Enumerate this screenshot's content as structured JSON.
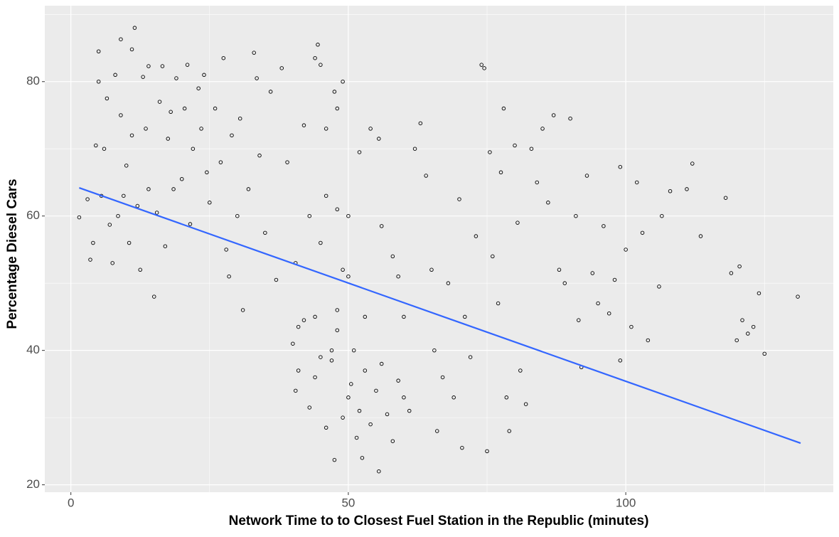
{
  "chart_data": {
    "type": "scatter",
    "x_label": "Network Time to to Closest Fuel Station in the Republic (minutes)",
    "y_label": "Percentage Diesel Cars",
    "xlim": [
      -4.7,
      137.4
    ],
    "ylim": [
      18.9,
      91.3
    ],
    "xticks": [
      0,
      50,
      100
    ],
    "yticks": [
      20,
      40,
      60,
      80
    ],
    "x_minor_grid": [
      25,
      75,
      125
    ],
    "y_minor_grid": [
      30,
      50,
      70,
      90
    ],
    "grid": true,
    "point_color": "#000000",
    "panel_color": "#ebebeb",
    "x": [
      1.5,
      3,
      3.5,
      4,
      4.5,
      5,
      5,
      5.5,
      6,
      6.5,
      7,
      7.5,
      8,
      8.5,
      9,
      9,
      9.5,
      10,
      10.5,
      11,
      11,
      11.5,
      12,
      12.5,
      13,
      13.5,
      14,
      14,
      15,
      15.5,
      16,
      16.5,
      17,
      17.5,
      18,
      18.5,
      19,
      20,
      20.5,
      21,
      21.5,
      22,
      23,
      23.5,
      24,
      24.5,
      25,
      26,
      27,
      27.5,
      28,
      28.5,
      29,
      30,
      30.5,
      31,
      32,
      33,
      33.5,
      34,
      35,
      36,
      37,
      38,
      39,
      40,
      40.5,
      41,
      42,
      43,
      44,
      44,
      45,
      46,
      47,
      48,
      49,
      50,
      40.5,
      41,
      42,
      43,
      44,
      45,
      46,
      47,
      48,
      49,
      50,
      50.5,
      51,
      51.5,
      52,
      53,
      54,
      55,
      55.5,
      56,
      57,
      58,
      59,
      60,
      47.5,
      52.5,
      53,
      49,
      48,
      44.5,
      45,
      47.5,
      48,
      52,
      54,
      55.5,
      46,
      50,
      56,
      58,
      59,
      60,
      61,
      62,
      63,
      64,
      65,
      65.5,
      66,
      67,
      68,
      69,
      70,
      70.5,
      71,
      72,
      73,
      74,
      74.5,
      75,
      75.5,
      76,
      77,
      77.5,
      78,
      78.5,
      79,
      80,
      80.5,
      81,
      82,
      83,
      84,
      85,
      86,
      87,
      88,
      89,
      90,
      91,
      91.5,
      92,
      93,
      94,
      95,
      96,
      97,
      98,
      99,
      99,
      100,
      101,
      102,
      103,
      104,
      106,
      106.5,
      108,
      111,
      112,
      113.5,
      118,
      119,
      120,
      120.5,
      121,
      122,
      123,
      124,
      125,
      131
    ],
    "values": [
      59.8,
      62.5,
      53.5,
      56,
      70.5,
      84.5,
      80,
      63,
      70,
      77.5,
      58.7,
      53,
      81,
      60,
      86.3,
      75,
      63,
      67.5,
      56,
      84.8,
      72,
      88,
      61.5,
      52,
      80.7,
      73,
      82.3,
      64,
      48,
      60.5,
      77,
      82.3,
      55.5,
      71.5,
      75.5,
      64,
      80.5,
      65.5,
      76,
      82.5,
      58.8,
      70,
      79,
      73,
      81,
      66.5,
      62,
      76,
      68,
      83.5,
      55,
      51,
      72,
      60,
      74.5,
      46,
      64,
      84.3,
      80.5,
      69,
      57.5,
      78.5,
      50.5,
      82,
      68,
      41,
      53,
      43.5,
      73.5,
      60,
      45,
      83.5,
      56,
      73,
      40,
      61,
      80,
      51,
      34,
      37,
      44.5,
      31.5,
      36,
      39,
      28.5,
      38.5,
      43,
      30,
      33,
      35,
      40,
      27,
      31,
      37,
      29,
      34,
      22,
      38,
      30.5,
      26.5,
      35.5,
      33,
      23.7,
      24,
      45,
      52,
      46,
      85.5,
      82.5,
      78.5,
      76,
      69.5,
      73,
      71.5,
      63,
      60,
      58.5,
      54,
      51,
      45,
      31,
      70,
      73.8,
      66,
      52,
      40,
      28,
      36,
      50,
      33,
      62.5,
      25.5,
      45,
      39,
      57,
      82.5,
      82,
      25,
      69.5,
      54,
      47,
      66.5,
      76,
      33,
      28,
      70.5,
      59,
      37,
      32,
      70,
      65,
      73,
      62,
      75,
      52,
      50,
      74.5,
      60,
      44.5,
      37.5,
      66,
      51.5,
      47,
      58.5,
      45.5,
      50.5,
      38.5,
      67.3,
      55,
      43.5,
      65,
      57.5,
      41.5,
      49.5,
      60,
      63.7,
      64,
      67.8,
      57,
      62.7,
      51.5,
      41.5,
      52.5,
      44.5,
      42.5,
      43.5,
      48.5,
      39.5,
      48
    ],
    "trend": {
      "x": [
        1.5,
        131.5
      ],
      "y": [
        64.2,
        26.2
      ],
      "color": "#3366ff"
    }
  }
}
